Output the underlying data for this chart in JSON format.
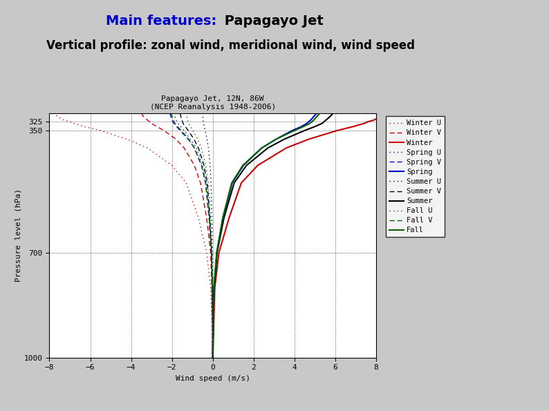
{
  "title_line1": "Papagayo Jet, 12N, 86W",
  "title_line2": "(NCEP Reanalysis 1948-2006)",
  "xlabel": "Wind speed (m/s)",
  "ylabel": "Pressure level (hPa)",
  "xlim": [
    -8,
    8
  ],
  "ylim": [
    1000,
    300
  ],
  "yticks": [
    700,
    350,
    325,
    1000
  ],
  "xticks": [
    -8,
    -6,
    -4,
    -2,
    0,
    2,
    4,
    6,
    8
  ],
  "bg_color": "#c8c8c8",
  "heading1": "Main features:",
  "heading1_color": "#0000cc",
  "heading2": " Papagayo Jet",
  "heading2_color": "#000000",
  "subheading": "Vertical profile: zonal wind, meridional wind, wind speed",
  "pressure_levels": [
    300,
    310,
    320,
    325,
    330,
    340,
    350,
    375,
    400,
    450,
    500,
    600,
    700,
    800,
    900,
    1000
  ],
  "winter_u": [
    -7.8,
    -7.6,
    -7.3,
    -7.0,
    -6.8,
    -6.2,
    -5.5,
    -4.2,
    -3.2,
    -2.0,
    -1.3,
    -0.7,
    -0.3,
    -0.1,
    -0.05,
    -0.01
  ],
  "winter_v": [
    -3.5,
    -3.4,
    -3.2,
    -3.1,
    -3.0,
    -2.7,
    -2.4,
    -1.8,
    -1.4,
    -0.9,
    -0.6,
    -0.3,
    -0.1,
    -0.05,
    -0.01,
    0.0
  ],
  "winter_spd": [
    8.5,
    8.2,
    7.9,
    7.6,
    7.4,
    6.8,
    6.1,
    4.7,
    3.6,
    2.2,
    1.4,
    0.8,
    0.3,
    0.1,
    0.05,
    0.01
  ],
  "spring_u": [
    -1.9,
    -1.85,
    -1.8,
    -1.75,
    -1.7,
    -1.55,
    -1.4,
    -1.1,
    -0.8,
    -0.5,
    -0.3,
    -0.15,
    -0.06,
    -0.02,
    -0.01,
    0.0
  ],
  "spring_v": [
    -2.1,
    -2.05,
    -2.0,
    -1.95,
    -1.9,
    -1.75,
    -1.6,
    -1.2,
    -0.9,
    -0.55,
    -0.35,
    -0.18,
    -0.07,
    -0.02,
    -0.01,
    0.0
  ],
  "spring_spd": [
    5.1,
    4.95,
    4.8,
    4.7,
    4.6,
    4.3,
    3.9,
    3.1,
    2.4,
    1.5,
    0.95,
    0.5,
    0.2,
    0.07,
    0.02,
    0.0
  ],
  "summer_u": [
    -0.5,
    -0.49,
    -0.47,
    -0.46,
    -0.45,
    -0.41,
    -0.37,
    -0.28,
    -0.21,
    -0.13,
    -0.08,
    -0.04,
    -0.015,
    -0.005,
    -0.002,
    0.0
  ],
  "summer_v": [
    -1.6,
    -1.56,
    -1.51,
    -1.48,
    -1.45,
    -1.33,
    -1.2,
    -0.92,
    -0.7,
    -0.43,
    -0.27,
    -0.14,
    -0.055,
    -0.018,
    -0.006,
    0.0
  ],
  "summer_spd": [
    5.9,
    5.75,
    5.55,
    5.45,
    5.35,
    4.95,
    4.5,
    3.5,
    2.7,
    1.65,
    1.05,
    0.55,
    0.21,
    0.07,
    0.02,
    0.0
  ],
  "fall_u": [
    -1.3,
    -1.27,
    -1.23,
    -1.2,
    -1.17,
    -1.07,
    -0.97,
    -0.74,
    -0.56,
    -0.34,
    -0.21,
    -0.11,
    -0.042,
    -0.014,
    -0.005,
    0.0
  ],
  "fall_v": [
    -2.05,
    -2.0,
    -1.93,
    -1.89,
    -1.85,
    -1.7,
    -1.54,
    -1.18,
    -0.9,
    -0.55,
    -0.35,
    -0.18,
    -0.07,
    -0.023,
    -0.007,
    0.0
  ],
  "fall_spd": [
    5.25,
    5.1,
    4.95,
    4.85,
    4.75,
    4.4,
    4.0,
    3.1,
    2.4,
    1.47,
    0.93,
    0.49,
    0.19,
    0.06,
    0.02,
    0.0
  ],
  "winter_color": "#cc0000",
  "spring_color": "#0000cc",
  "summer_color": "#000000",
  "fall_color": "#006600",
  "legend_labels": [
    "Winter U",
    "Winter V",
    "Winter",
    "Spring U",
    "Spring V",
    "Spring",
    "Summer U",
    "Summer V",
    "Summer",
    "Fall U",
    "Fall V",
    "Fall"
  ]
}
